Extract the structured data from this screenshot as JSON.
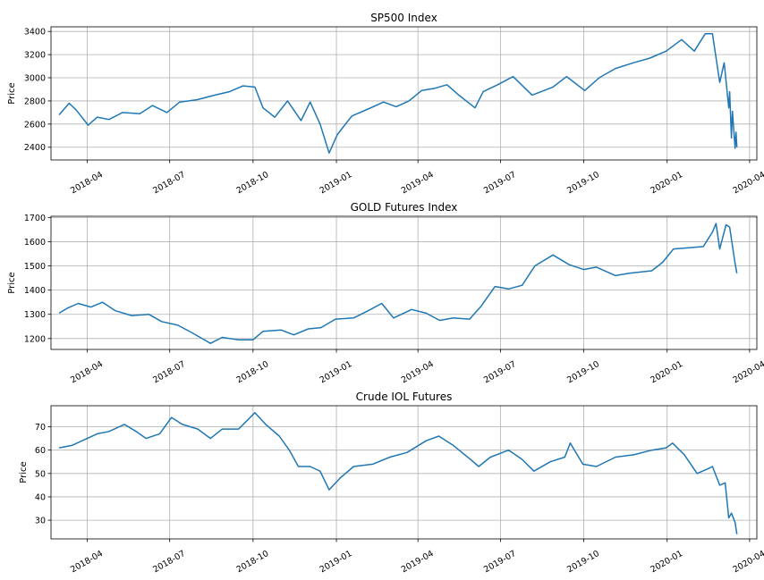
{
  "chart_data": [
    {
      "type": "line",
      "title": "SP500 Index",
      "ylabel": "Price",
      "xlim": [
        "2018-02-20",
        "2020-04-09"
      ],
      "ylim": [
        2290,
        3440
      ],
      "yticks": [
        2400,
        2600,
        2800,
        3000,
        3200,
        3400
      ],
      "xticks": [
        "2018-04",
        "2018-07",
        "2018-10",
        "2019-01",
        "2019-04",
        "2019-07",
        "2019-10",
        "2020-01",
        "2020-04"
      ],
      "grid": true,
      "series": [
        {
          "color": "#1f77b4",
          "points": [
            [
              "2018-03-01",
              2680
            ],
            [
              "2018-03-12",
              2780
            ],
            [
              "2018-03-20",
              2720
            ],
            [
              "2018-04-02",
              2590
            ],
            [
              "2018-04-12",
              2660
            ],
            [
              "2018-04-25",
              2640
            ],
            [
              "2018-05-10",
              2700
            ],
            [
              "2018-05-29",
              2690
            ],
            [
              "2018-06-12",
              2760
            ],
            [
              "2018-06-28",
              2700
            ],
            [
              "2018-07-12",
              2790
            ],
            [
              "2018-07-31",
              2810
            ],
            [
              "2018-08-20",
              2850
            ],
            [
              "2018-09-05",
              2880
            ],
            [
              "2018-09-20",
              2930
            ],
            [
              "2018-10-03",
              2920
            ],
            [
              "2018-10-12",
              2740
            ],
            [
              "2018-10-25",
              2660
            ],
            [
              "2018-11-08",
              2800
            ],
            [
              "2018-11-23",
              2630
            ],
            [
              "2018-12-03",
              2790
            ],
            [
              "2018-12-14",
              2600
            ],
            [
              "2018-12-24",
              2350
            ],
            [
              "2019-01-02",
              2510
            ],
            [
              "2019-01-18",
              2670
            ],
            [
              "2019-02-05",
              2730
            ],
            [
              "2019-02-22",
              2790
            ],
            [
              "2019-03-08",
              2750
            ],
            [
              "2019-03-22",
              2800
            ],
            [
              "2019-04-05",
              2890
            ],
            [
              "2019-04-20",
              2910
            ],
            [
              "2019-05-03",
              2940
            ],
            [
              "2019-05-16",
              2850
            ],
            [
              "2019-06-03",
              2740
            ],
            [
              "2019-06-12",
              2880
            ],
            [
              "2019-06-28",
              2940
            ],
            [
              "2019-07-15",
              3010
            ],
            [
              "2019-08-05",
              2850
            ],
            [
              "2019-08-15",
              2880
            ],
            [
              "2019-08-28",
              2920
            ],
            [
              "2019-09-12",
              3010
            ],
            [
              "2019-10-02",
              2890
            ],
            [
              "2019-10-18",
              3000
            ],
            [
              "2019-11-05",
              3080
            ],
            [
              "2019-11-25",
              3130
            ],
            [
              "2019-12-13",
              3170
            ],
            [
              "2019-12-31",
              3230
            ],
            [
              "2020-01-17",
              3330
            ],
            [
              "2020-01-31",
              3230
            ],
            [
              "2020-02-12",
              3380
            ],
            [
              "2020-02-20",
              3380
            ],
            [
              "2020-02-28",
              2960
            ],
            [
              "2020-03-04",
              3130
            ],
            [
              "2020-03-09",
              2740
            ],
            [
              "2020-03-10",
              2880
            ],
            [
              "2020-03-12",
              2480
            ],
            [
              "2020-03-13",
              2710
            ],
            [
              "2020-03-16",
              2390
            ],
            [
              "2020-03-17",
              2530
            ],
            [
              "2020-03-18",
              2400
            ]
          ]
        }
      ]
    },
    {
      "type": "line",
      "title": "GOLD Futures Index",
      "ylabel": "Price",
      "xlim": [
        "2018-02-20",
        "2020-04-09"
      ],
      "ylim": [
        1155,
        1705
      ],
      "yticks": [
        1200,
        1300,
        1400,
        1500,
        1600,
        1700
      ],
      "xticks": [
        "2018-04",
        "2018-07",
        "2018-10",
        "2019-01",
        "2019-04",
        "2019-07",
        "2019-10",
        "2020-01",
        "2020-04"
      ],
      "grid": true,
      "series": [
        {
          "color": "#1f77b4",
          "points": [
            [
              "2018-03-01",
              1305
            ],
            [
              "2018-03-10",
              1325
            ],
            [
              "2018-03-22",
              1345
            ],
            [
              "2018-04-05",
              1330
            ],
            [
              "2018-04-18",
              1350
            ],
            [
              "2018-05-02",
              1315
            ],
            [
              "2018-05-20",
              1295
            ],
            [
              "2018-06-08",
              1300
            ],
            [
              "2018-06-22",
              1270
            ],
            [
              "2018-07-10",
              1255
            ],
            [
              "2018-07-25",
              1225
            ],
            [
              "2018-08-15",
              1180
            ],
            [
              "2018-08-28",
              1205
            ],
            [
              "2018-09-15",
              1195
            ],
            [
              "2018-10-01",
              1195
            ],
            [
              "2018-10-12",
              1230
            ],
            [
              "2018-11-01",
              1235
            ],
            [
              "2018-11-15",
              1215
            ],
            [
              "2018-12-01",
              1240
            ],
            [
              "2018-12-15",
              1245
            ],
            [
              "2018-12-31",
              1280
            ],
            [
              "2019-01-20",
              1285
            ],
            [
              "2019-02-05",
              1315
            ],
            [
              "2019-02-20",
              1345
            ],
            [
              "2019-03-05",
              1285
            ],
            [
              "2019-03-25",
              1320
            ],
            [
              "2019-04-10",
              1305
            ],
            [
              "2019-04-25",
              1275
            ],
            [
              "2019-05-10",
              1285
            ],
            [
              "2019-05-28",
              1280
            ],
            [
              "2019-06-10",
              1335
            ],
            [
              "2019-06-25",
              1415
            ],
            [
              "2019-07-10",
              1405
            ],
            [
              "2019-07-25",
              1420
            ],
            [
              "2019-08-08",
              1500
            ],
            [
              "2019-08-28",
              1545
            ],
            [
              "2019-09-15",
              1505
            ],
            [
              "2019-10-01",
              1485
            ],
            [
              "2019-10-15",
              1495
            ],
            [
              "2019-11-05",
              1460
            ],
            [
              "2019-11-20",
              1470
            ],
            [
              "2019-12-15",
              1480
            ],
            [
              "2019-12-27",
              1515
            ],
            [
              "2020-01-08",
              1570
            ],
            [
              "2020-01-25",
              1575
            ],
            [
              "2020-02-10",
              1580
            ],
            [
              "2020-02-20",
              1640
            ],
            [
              "2020-02-24",
              1675
            ],
            [
              "2020-02-28",
              1570
            ],
            [
              "2020-03-06",
              1670
            ],
            [
              "2020-03-10",
              1660
            ],
            [
              "2020-03-16",
              1510
            ],
            [
              "2020-03-18",
              1470
            ]
          ]
        }
      ]
    },
    {
      "type": "line",
      "title": "Crude IOL Futures",
      "ylabel": "Price",
      "xlim": [
        "2018-02-20",
        "2020-04-09"
      ],
      "ylim": [
        22,
        79
      ],
      "yticks": [
        30,
        40,
        50,
        60,
        70
      ],
      "xticks": [
        "2018-04",
        "2018-07",
        "2018-10",
        "2019-01",
        "2019-04",
        "2019-07",
        "2019-10",
        "2020-01",
        "2020-04"
      ],
      "grid": true,
      "series": [
        {
          "color": "#1f77b4",
          "points": [
            [
              "2018-03-01",
              61
            ],
            [
              "2018-03-15",
              62
            ],
            [
              "2018-04-01",
              65
            ],
            [
              "2018-04-12",
              67
            ],
            [
              "2018-04-25",
              68
            ],
            [
              "2018-05-12",
              71
            ],
            [
              "2018-05-25",
              68
            ],
            [
              "2018-06-05",
              65
            ],
            [
              "2018-06-20",
              67
            ],
            [
              "2018-07-03",
              74
            ],
            [
              "2018-07-15",
              71
            ],
            [
              "2018-08-01",
              69
            ],
            [
              "2018-08-15",
              65
            ],
            [
              "2018-08-28",
              69
            ],
            [
              "2018-09-15",
              69
            ],
            [
              "2018-10-03",
              76
            ],
            [
              "2018-10-15",
              71
            ],
            [
              "2018-10-30",
              66
            ],
            [
              "2018-11-10",
              60
            ],
            [
              "2018-11-20",
              53
            ],
            [
              "2018-12-03",
              53
            ],
            [
              "2018-12-14",
              51
            ],
            [
              "2018-12-24",
              43
            ],
            [
              "2019-01-05",
              48
            ],
            [
              "2019-01-20",
              53
            ],
            [
              "2019-02-10",
              54
            ],
            [
              "2019-03-01",
              57
            ],
            [
              "2019-03-20",
              59
            ],
            [
              "2019-04-10",
              64
            ],
            [
              "2019-04-24",
              66
            ],
            [
              "2019-05-10",
              62
            ],
            [
              "2019-05-29",
              56
            ],
            [
              "2019-06-07",
              53
            ],
            [
              "2019-06-20",
              57
            ],
            [
              "2019-07-10",
              60
            ],
            [
              "2019-07-25",
              56
            ],
            [
              "2019-08-07",
              51
            ],
            [
              "2019-08-25",
              55
            ],
            [
              "2019-09-10",
              57
            ],
            [
              "2019-09-16",
              63
            ],
            [
              "2019-09-30",
              54
            ],
            [
              "2019-10-15",
              53
            ],
            [
              "2019-11-05",
              57
            ],
            [
              "2019-11-25",
              58
            ],
            [
              "2019-12-15",
              60
            ],
            [
              "2019-12-31",
              61
            ],
            [
              "2020-01-07",
              63
            ],
            [
              "2020-01-20",
              58
            ],
            [
              "2020-02-03",
              50
            ],
            [
              "2020-02-15",
              52
            ],
            [
              "2020-02-20",
              53
            ],
            [
              "2020-02-28",
              45
            ],
            [
              "2020-03-05",
              46
            ],
            [
              "2020-03-09",
              31
            ],
            [
              "2020-03-12",
              33
            ],
            [
              "2020-03-16",
              29
            ],
            [
              "2020-03-18",
              24
            ]
          ]
        }
      ]
    }
  ]
}
